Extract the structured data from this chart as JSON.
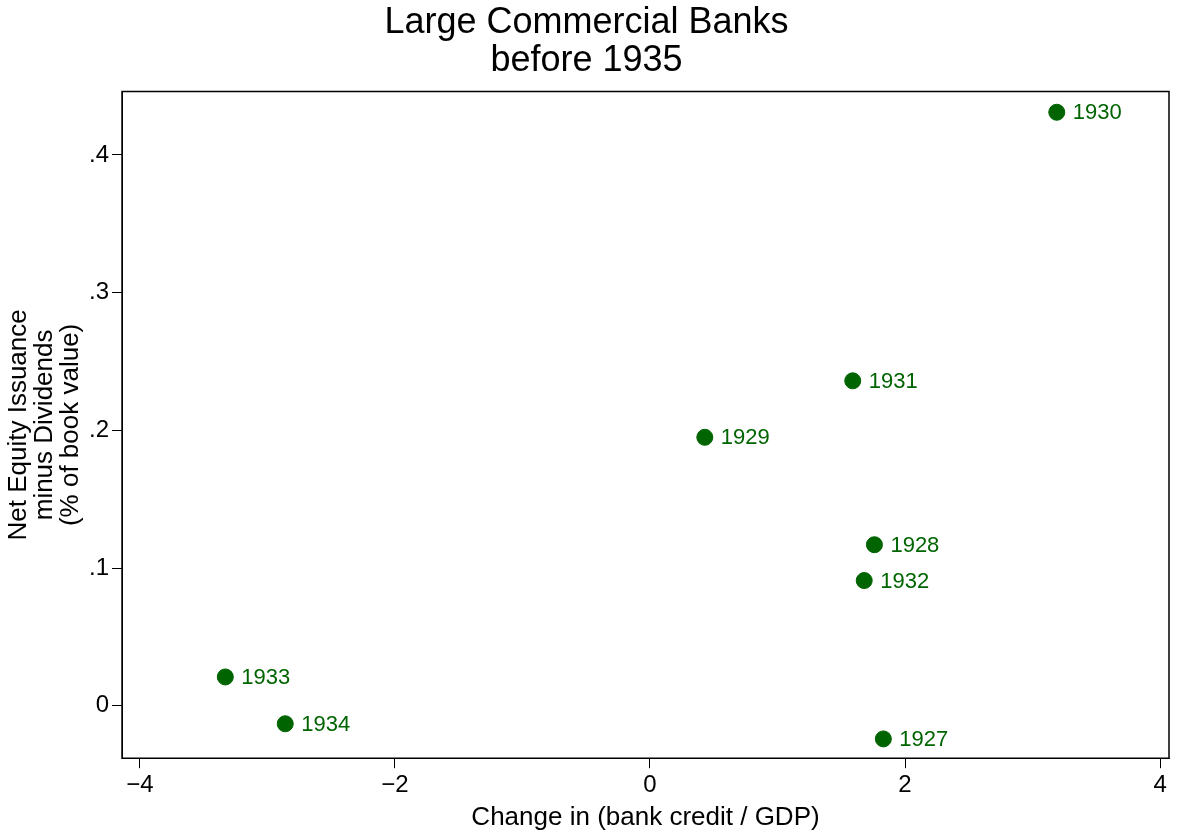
{
  "chart_data": {
    "type": "scatter",
    "title": "Large Commercial Banks\nbefore 1935",
    "xlabel": "Change in (bank credit / GDP)",
    "ylabel": "Net Equity Issuance\nminus Dividends\n(% of book value)",
    "series": [
      {
        "color": "#006400",
        "x": [
          1.83,
          1.76,
          0.43,
          3.19,
          1.59,
          1.68,
          -3.33,
          -2.86
        ],
        "values": [
          -0.024,
          0.117,
          0.195,
          0.431,
          0.236,
          0.091,
          0.021,
          -0.013
        ]
      }
    ],
    "annotations": [
      {
        "text": "1927",
        "x": 1.83,
        "y": -0.024
      },
      {
        "text": "1928",
        "x": 1.76,
        "y": 0.117
      },
      {
        "text": "1929",
        "x": 0.43,
        "y": 0.195
      },
      {
        "text": "1930",
        "x": 3.19,
        "y": 0.431
      },
      {
        "text": "1931",
        "x": 1.59,
        "y": 0.236
      },
      {
        "text": "1932",
        "x": 1.68,
        "y": 0.091
      },
      {
        "text": "1933",
        "x": -3.33,
        "y": 0.021
      },
      {
        "text": "1934",
        "x": -2.86,
        "y": -0.013
      }
    ],
    "xlim": [
      -4.14,
      4.07
    ],
    "xticks": [
      {
        "value": -4,
        "label": "−4"
      },
      {
        "value": -2,
        "label": "−2"
      },
      0,
      2,
      4
    ],
    "ylim": [
      -0.038,
      0.446
    ],
    "yticks": [
      0,
      {
        "value": 0.1,
        "label": ".1"
      },
      {
        "value": 0.2,
        "label": ".2"
      },
      {
        "value": 0.3,
        "label": ".3"
      },
      {
        "value": 0.4,
        "label": ".4"
      }
    ],
    "grid": false,
    "legend": false,
    "marker": "circle"
  }
}
